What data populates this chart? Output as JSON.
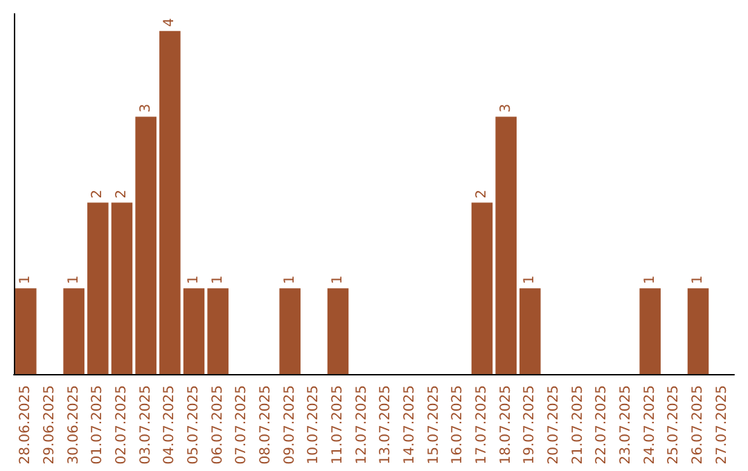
{
  "chart_data": {
    "type": "bar",
    "categories": [
      "28.06.2025",
      "29.06.2025",
      "30.06.2025",
      "01.07.2025",
      "02.07.2025",
      "03.07.2025",
      "04.07.2025",
      "05.07.2025",
      "06.07.2025",
      "07.07.2025",
      "08.07.2025",
      "09.07.2025",
      "10.07.2025",
      "11.07.2025",
      "12.07.2025",
      "13.07.2025",
      "14.07.2025",
      "15.07.2025",
      "16.07.2025",
      "17.07.2025",
      "18.07.2025",
      "19.07.2025",
      "20.07.2025",
      "21.07.2025",
      "22.07.2025",
      "23.07.2025",
      "24.07.2025",
      "25.07.2025",
      "26.07.2025",
      "27.07.2025"
    ],
    "values": [
      1,
      null,
      1,
      2,
      2,
      3,
      4,
      1,
      1,
      null,
      null,
      1,
      null,
      1,
      null,
      null,
      null,
      null,
      null,
      2,
      3,
      1,
      null,
      null,
      null,
      null,
      1,
      null,
      1,
      null
    ],
    "color": "#a0522d",
    "ylim": [
      0,
      4.2
    ],
    "tick_labels": "x",
    "data_labels": true
  }
}
